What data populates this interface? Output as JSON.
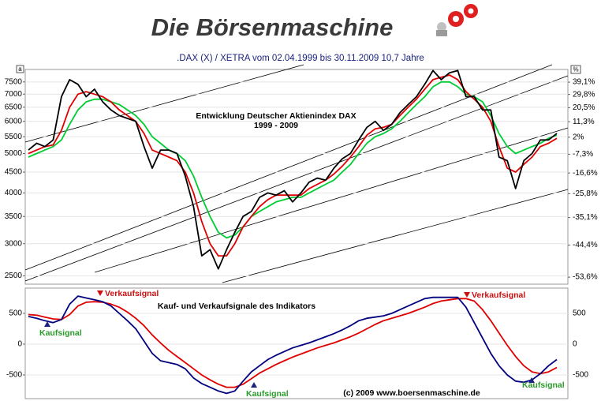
{
  "header": {
    "title": "Die Börsenmaschine"
  },
  "chart_data": [
    {
      "type": "line",
      "title": ".DAX (X) / XETRA vom 02.04.1999 bis 30.11.2009 10,7 Jahre",
      "annotation": [
        "Entwicklung Deutscher Aktienindex DAX",
        "1999 - 2009"
      ],
      "corner_label": "a",
      "y2_label": "%",
      "log_scale": true,
      "grid": true,
      "ylim": [
        2385,
        8050
      ],
      "yticks": [
        2500,
        3000,
        3500,
        4000,
        4500,
        5000,
        5500,
        6000,
        6500,
        7000,
        7500
      ],
      "y2lim": [
        -55.4,
        49.4
      ],
      "y2ticks": [
        {
          "value": 39.1,
          "label": "39,1%"
        },
        {
          "value": 29.8,
          "label": "29,8%"
        },
        {
          "value": 20.5,
          "label": "20,5%"
        },
        {
          "value": 11.3,
          "label": "11,3%"
        },
        {
          "value": 2,
          "label": "2%"
        },
        {
          "value": -7.3,
          "label": "-7,3%"
        },
        {
          "value": -16.6,
          "label": "-16,6%"
        },
        {
          "value": -25.8,
          "label": "-25,8%"
        },
        {
          "value": -35.1,
          "label": "-35,1%"
        },
        {
          "value": -44.4,
          "label": "-44,4%"
        },
        {
          "value": -53.6,
          "label": "-53,6%"
        }
      ],
      "series": [
        {
          "color": "#00cc33",
          "values": [
            4900,
            5000,
            5100,
            5200,
            5400,
            5900,
            6400,
            6700,
            6800,
            6800,
            6700,
            6600,
            6400,
            6200,
            5900,
            5500,
            5300,
            5100,
            5000,
            4800,
            4400,
            3900,
            3500,
            3200,
            3100,
            3150,
            3300,
            3500,
            3600,
            3700,
            3800,
            3850,
            3900,
            3900,
            4000,
            4100,
            4200,
            4300,
            4500,
            4700,
            5000,
            5300,
            5500,
            5600,
            5750,
            6000,
            6300,
            6600,
            6900,
            7300,
            7500,
            7500,
            7300,
            7000,
            6900,
            6700,
            6200,
            5600,
            5200,
            5000,
            5100,
            5200,
            5300,
            5450,
            5550
          ]
        },
        {
          "color": "#e00000",
          "values": [
            5000,
            5100,
            5200,
            5250,
            5700,
            6500,
            7000,
            7100,
            7000,
            6900,
            6700,
            6400,
            6200,
            6000,
            5600,
            5100,
            5000,
            4900,
            4800,
            4500,
            4000,
            3400,
            3000,
            2800,
            2800,
            3000,
            3300,
            3500,
            3700,
            3850,
            3950,
            3950,
            3950,
            3950,
            4100,
            4200,
            4300,
            4450,
            4650,
            4900,
            5200,
            5550,
            5750,
            5800,
            5900,
            6200,
            6500,
            6800,
            7200,
            7600,
            7700,
            7800,
            7600,
            7100,
            6800,
            6500,
            6000,
            5200,
            4600,
            4500,
            4700,
            4900,
            5200,
            5300,
            5450
          ]
        },
        {
          "color": "#000000",
          "values": [
            5100,
            5300,
            5200,
            5400,
            6900,
            7600,
            7400,
            6900,
            7200,
            6700,
            6400,
            6200,
            6100,
            6000,
            5200,
            4600,
            5100,
            5100,
            5000,
            4400,
            3700,
            2800,
            2900,
            2600,
            2900,
            3200,
            3500,
            3600,
            3900,
            4000,
            3950,
            4050,
            3800,
            4000,
            4250,
            4350,
            4300,
            4600,
            4850,
            5000,
            5400,
            5800,
            6000,
            5700,
            5900,
            6300,
            6600,
            6900,
            7400,
            8000,
            7600,
            7900,
            8000,
            6900,
            6900,
            6400,
            6400,
            4900,
            4800,
            4100,
            4800,
            5000,
            5400,
            5400,
            5600
          ]
        }
      ]
    },
    {
      "type": "line",
      "title": "Kauf- und Verkaufsignale des Indikators",
      "annotations": [
        "Kaufsignal",
        "Verkaufsignal",
        "Kaufsignal",
        "Verkaufsignal",
        "Kaufsignal"
      ],
      "footer": "(c) 2009 www.boersenmaschine.de",
      "grid": true,
      "ylim": [
        -885,
        910
      ],
      "yticks": [
        500,
        0,
        -500
      ],
      "series": [
        {
          "color": "#e00000",
          "values": [
            480,
            470,
            440,
            410,
            400,
            480,
            620,
            680,
            690,
            680,
            650,
            600,
            520,
            420,
            300,
            150,
            20,
            -100,
            -200,
            -300,
            -400,
            -500,
            -580,
            -650,
            -700,
            -700,
            -650,
            -560,
            -470,
            -400,
            -330,
            -270,
            -210,
            -160,
            -110,
            -60,
            -20,
            20,
            70,
            120,
            180,
            250,
            320,
            380,
            420,
            460,
            500,
            550,
            600,
            660,
            700,
            720,
            740,
            740,
            700,
            560,
            380,
            180,
            -20,
            -200,
            -350,
            -450,
            -480,
            -450,
            -380
          ]
        },
        {
          "color": "#000080",
          "values": [
            450,
            420,
            380,
            350,
            400,
            650,
            780,
            750,
            720,
            690,
            620,
            500,
            380,
            250,
            50,
            -150,
            -270,
            -300,
            -330,
            -400,
            -550,
            -640,
            -700,
            -760,
            -800,
            -760,
            -600,
            -450,
            -350,
            -250,
            -180,
            -120,
            -60,
            -20,
            20,
            70,
            120,
            170,
            230,
            300,
            380,
            420,
            440,
            460,
            500,
            560,
            620,
            680,
            740,
            760,
            760,
            760,
            760,
            600,
            350,
            100,
            -150,
            -350,
            -500,
            -600,
            -620,
            -580,
            -480,
            -350,
            -250
          ]
        }
      ]
    }
  ]
}
